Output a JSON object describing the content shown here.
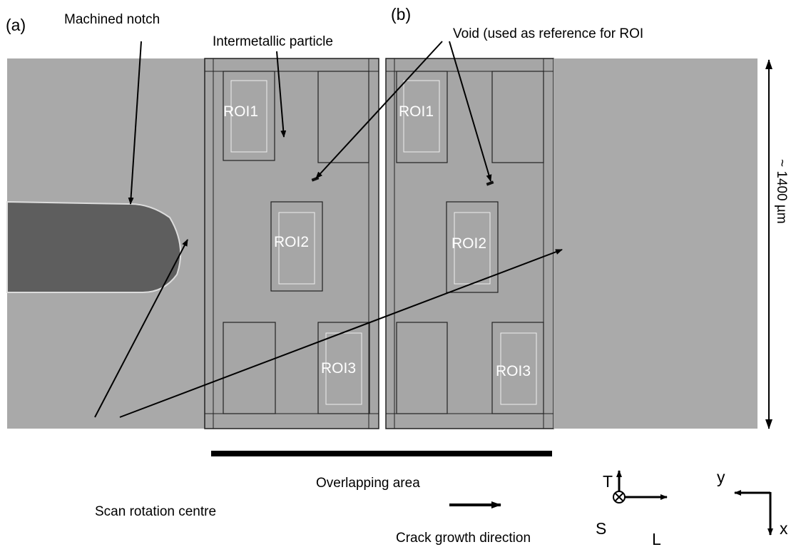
{
  "panel_labels": [
    "(a)",
    "(b)"
  ],
  "annotations": {
    "machined_notch": "Machined notch",
    "intermetallic_particle": "Intermetallic particle",
    "void": "Void (used as reference for ROI",
    "scale": "~ 1400 µm",
    "overlapping_area": "Overlapping area",
    "scan_rotation_centre": "Scan rotation centre",
    "crack_growth_direction": "Crack growth direction"
  },
  "panels": [
    {
      "rois": [
        "ROI1",
        "ROI2",
        "ROI3"
      ]
    },
    {
      "rois": [
        "ROI1",
        "ROI2",
        "ROI3"
      ]
    }
  ],
  "axes_tsl": {
    "t": "T",
    "s": "S",
    "l": "L"
  },
  "axes_xy": {
    "y": "y",
    "x": "x"
  }
}
